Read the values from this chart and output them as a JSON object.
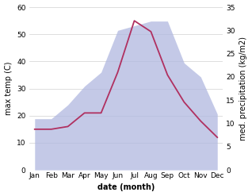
{
  "months": [
    "Jan",
    "Feb",
    "Mar",
    "Apr",
    "May",
    "Jun",
    "Jul",
    "Aug",
    "Sep",
    "Oct",
    "Nov",
    "Dec"
  ],
  "temp_line": [
    15,
    15,
    16,
    21,
    21,
    36,
    55,
    51,
    35,
    25,
    18,
    12
  ],
  "precip_fill": [
    11,
    11,
    14,
    18,
    21,
    30,
    31,
    32,
    32,
    23,
    20,
    12
  ],
  "temp_color": "#b03060",
  "precip_fill_color": "#b0b8e0",
  "precip_fill_alpha": 0.75,
  "ylabel_left": "max temp (C)",
  "ylabel_right": "med. precipitation (kg/m2)",
  "xlabel": "date (month)",
  "ylim_left": [
    0,
    60
  ],
  "ylim_right": [
    0,
    35
  ],
  "bg_color": "#ffffff",
  "grid_color": "#d0d0d0",
  "label_fontsize": 7,
  "tick_fontsize": 6.5
}
